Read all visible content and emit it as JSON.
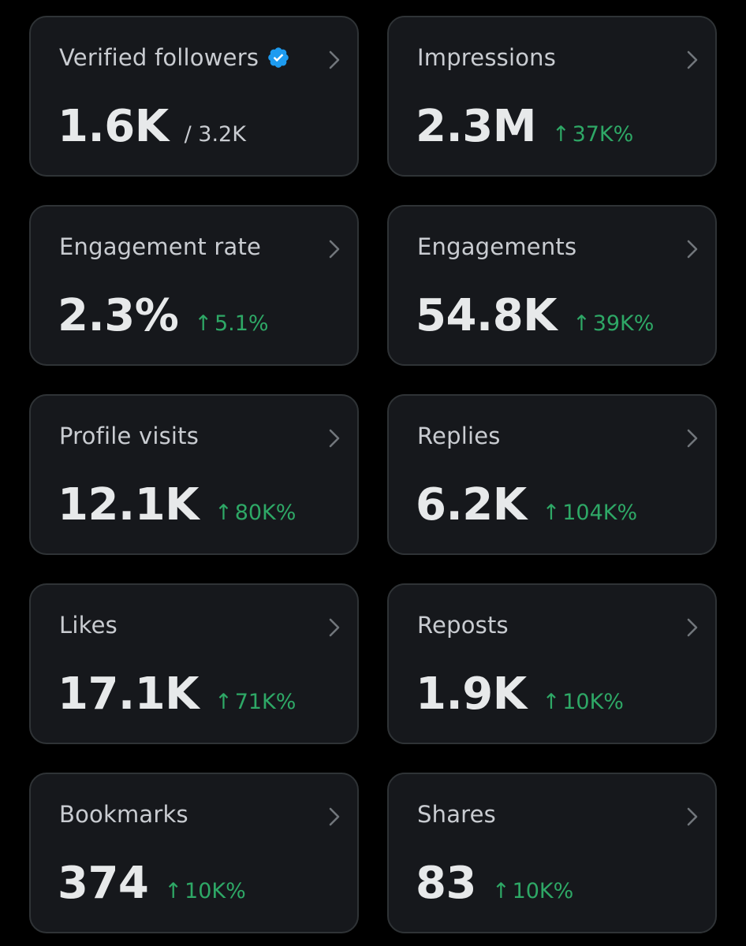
{
  "cards": [
    {
      "id": "verified-followers",
      "label": "Verified followers",
      "value": "1.6K",
      "total": "/ 3.2K",
      "verified": true
    },
    {
      "id": "impressions",
      "label": "Impressions",
      "value": "2.3M",
      "change": "37K%"
    },
    {
      "id": "engagement-rate",
      "label": "Engagement rate",
      "value": "2.3%",
      "change": "5.1%"
    },
    {
      "id": "engagements",
      "label": "Engagements",
      "value": "54.8K",
      "change": "39K%"
    },
    {
      "id": "profile-visits",
      "label": "Profile visits",
      "value": "12.1K",
      "change": "80K%"
    },
    {
      "id": "replies",
      "label": "Replies",
      "value": "6.2K",
      "change": "104K%"
    },
    {
      "id": "likes",
      "label": "Likes",
      "value": "17.1K",
      "change": "71K%"
    },
    {
      "id": "reposts",
      "label": "Reposts",
      "value": "1.9K",
      "change": "10K%"
    },
    {
      "id": "bookmarks",
      "label": "Bookmarks",
      "value": "374",
      "change": "10K%"
    },
    {
      "id": "shares",
      "label": "Shares",
      "value": "83",
      "change": "10K%"
    }
  ],
  "icons": {
    "arrow": "↑",
    "verified_badge": "verified-badge-icon",
    "chevron": "chevron-right-icon"
  },
  "colors": {
    "background": "#000000",
    "card": "#16181c",
    "card_border": "#2f3336",
    "label": "#c9ccd1",
    "value": "#e7e9ea",
    "positive": "#2ea866",
    "verified": "#1d9bf0"
  }
}
